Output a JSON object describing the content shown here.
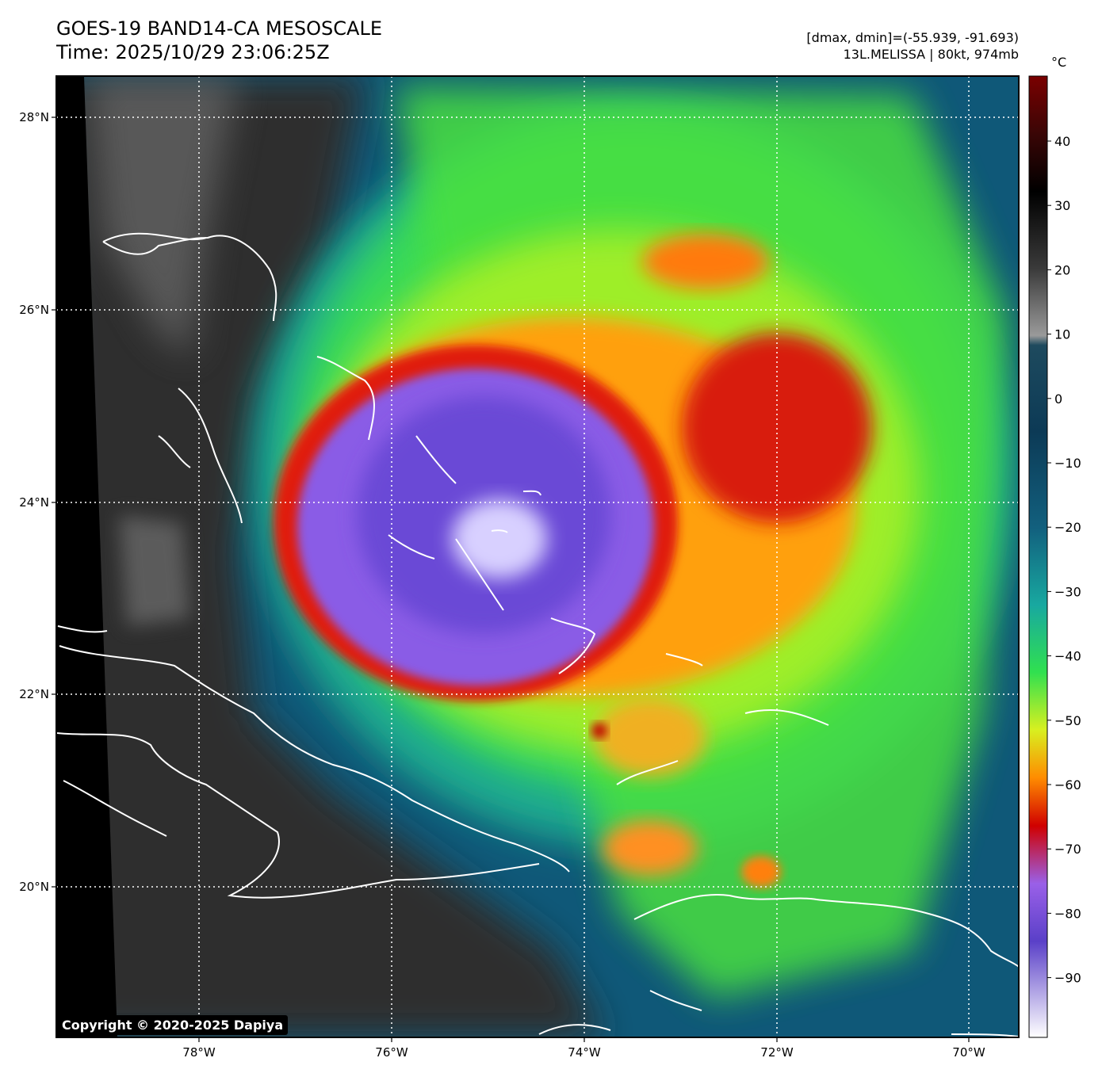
{
  "header": {
    "title": "GOES-19 BAND14-CA MESOSCALE",
    "time": "Time: 2025/10/29 23:06:25Z",
    "range": "[dmax, dmin]=(-55.939, -91.693)",
    "storm": "13L.MELISSA | 80kt, 974mb"
  },
  "axes": {
    "lon_labels": [
      "78°W",
      "76°W",
      "74°W",
      "72°W",
      "70°W"
    ],
    "lat_labels": [
      "28°N",
      "26°N",
      "24°N",
      "22°N",
      "20°N"
    ]
  },
  "colorbar": {
    "unit": "°C",
    "ticks": [
      "40",
      "30",
      "20",
      "10",
      "0",
      "−10",
      "−20",
      "−30",
      "−40",
      "−50",
      "−60",
      "−70",
      "−80",
      "−90"
    ]
  },
  "copyright": "Copyright © 2020-2025 Dapiya",
  "colors": {
    "storm_core": "#8a5ce6",
    "eyewall": "#d81a0a",
    "outer_green": "#5ee832",
    "ocean_teal": "#0f5a78",
    "clear_gray": "#3a3a3a"
  }
}
